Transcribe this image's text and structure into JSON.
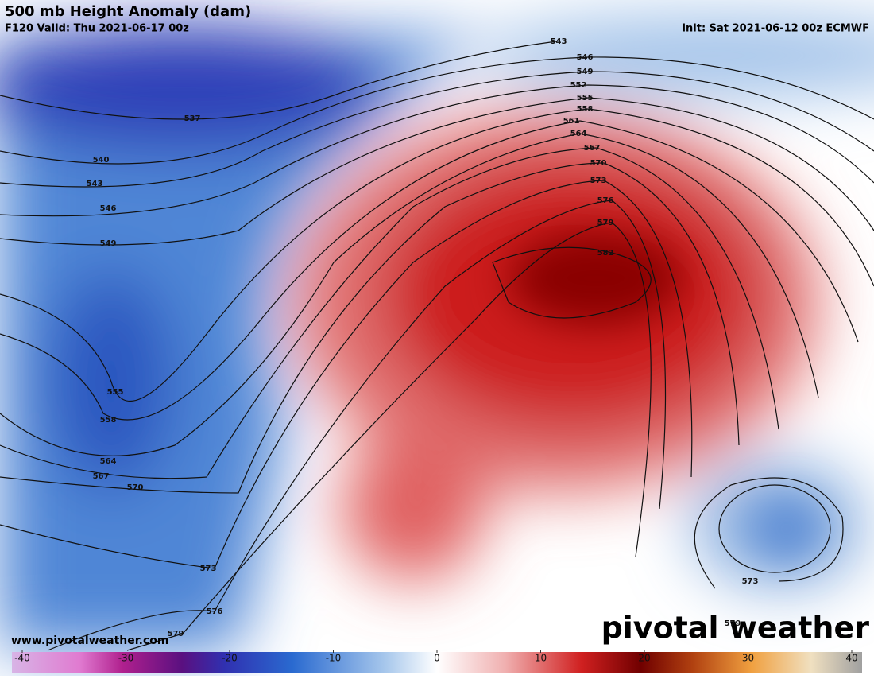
{
  "header": {
    "title": "500 mb Height Anomaly (dam)",
    "valid": "F120 Valid: Thu 2021-06-17 00z",
    "init": "Init: Sat 2021-06-12 00z ECMWF"
  },
  "map": {
    "contour_labels": [
      543,
      546,
      549,
      552,
      555,
      558,
      561,
      564,
      567,
      570,
      573,
      576,
      579,
      582,
      537,
      540,
      543,
      546,
      549,
      555,
      558,
      564,
      567,
      570,
      573,
      576,
      579,
      573,
      579
    ]
  },
  "footer": {
    "website": "www.pivotalweather.com",
    "logo": "pivotal weather"
  },
  "colorbar": {
    "range": [
      -40,
      40
    ],
    "ticks": [
      -40,
      -30,
      -20,
      -10,
      0,
      10,
      20,
      30,
      40
    ]
  }
}
